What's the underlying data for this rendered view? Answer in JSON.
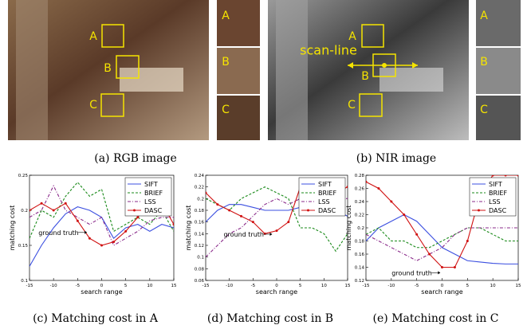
{
  "images": [
    {
      "caption": "(a) RGB image",
      "labels": [
        "A",
        "B",
        "C"
      ]
    },
    {
      "caption": "(b) NIR image",
      "labels": [
        "A",
        "B",
        "C"
      ],
      "annotation": "scan-line"
    }
  ],
  "chart_data": [
    {
      "type": "line",
      "caption": "(c) Matching cost in A",
      "xlabel": "search range",
      "ylabel": "matching cost",
      "annotation": "ground truth",
      "x": [
        -15,
        -12.5,
        -10,
        -7.5,
        -5,
        -2.5,
        0,
        2.5,
        5,
        7.5,
        10,
        12.5,
        15
      ],
      "xlim": [
        -15,
        15
      ],
      "xticks": [
        -15,
        -10,
        -5,
        0,
        5,
        10,
        15
      ],
      "ylim": [
        0.1,
        0.25
      ],
      "yticks": [
        0.1,
        0.15,
        0.2,
        0.25
      ],
      "legend": "upper right",
      "series": [
        {
          "name": "SIFT",
          "color": "#3b4fe0",
          "dash": "solid",
          "values": [
            0.12,
            0.15,
            0.175,
            0.195,
            0.205,
            0.2,
            0.19,
            0.16,
            0.175,
            0.18,
            0.17,
            0.18,
            0.175
          ]
        },
        {
          "name": "BRIEF",
          "color": "#1a8a1a",
          "dash": "dashed",
          "values": [
            0.16,
            0.2,
            0.19,
            0.22,
            0.24,
            0.22,
            0.23,
            0.17,
            0.18,
            0.19,
            0.18,
            0.2,
            0.17
          ]
        },
        {
          "name": "LSS",
          "color": "#8a2a8a",
          "dash": "dashdot",
          "values": [
            0.19,
            0.2,
            0.235,
            0.2,
            0.19,
            0.18,
            0.19,
            0.15,
            0.16,
            0.17,
            0.185,
            0.19,
            0.19
          ]
        },
        {
          "name": "DASC",
          "color": "#d01010",
          "dash": "solid",
          "marker": true,
          "values": [
            0.2,
            0.21,
            0.2,
            0.21,
            0.185,
            0.16,
            0.15,
            0.155,
            0.17,
            0.19,
            0.21,
            0.21,
            0.18
          ]
        }
      ]
    },
    {
      "type": "line",
      "caption": "(d) Matching cost in B",
      "xlabel": "search range",
      "ylabel": "matching cost",
      "annotation": "ground truth",
      "x": [
        -15,
        -12.5,
        -10,
        -7.5,
        -5,
        -2.5,
        0,
        2.5,
        5,
        7.5,
        10,
        12.5,
        15
      ],
      "xlim": [
        -15,
        15
      ],
      "xticks": [
        -15,
        -10,
        -5,
        0,
        5,
        10,
        15
      ],
      "ylim": [
        0.06,
        0.24
      ],
      "yticks": [
        0.06,
        0.08,
        0.1,
        0.12,
        0.14,
        0.16,
        0.18,
        0.2,
        0.22,
        0.24
      ],
      "legend": "upper right",
      "series": [
        {
          "name": "SIFT",
          "color": "#3b4fe0",
          "dash": "solid",
          "values": [
            0.16,
            0.18,
            0.19,
            0.19,
            0.185,
            0.18,
            0.18,
            0.18,
            0.185,
            0.19,
            0.19,
            0.18,
            0.17
          ]
        },
        {
          "name": "BRIEF",
          "color": "#1a8a1a",
          "dash": "dashed",
          "values": [
            0.2,
            0.19,
            0.18,
            0.2,
            0.21,
            0.22,
            0.21,
            0.2,
            0.15,
            0.15,
            0.14,
            0.11,
            0.14
          ]
        },
        {
          "name": "LSS",
          "color": "#8a2a8a",
          "dash": "dashdot",
          "values": [
            0.1,
            0.12,
            0.14,
            0.15,
            0.17,
            0.19,
            0.2,
            0.19,
            0.2,
            0.2,
            0.2,
            0.2,
            0.2
          ]
        },
        {
          "name": "DASC",
          "color": "#d01010",
          "dash": "solid",
          "marker": true,
          "values": [
            0.21,
            0.19,
            0.18,
            0.17,
            0.16,
            0.14,
            0.145,
            0.16,
            0.22,
            0.22,
            0.21,
            0.21,
            0.22
          ]
        }
      ]
    },
    {
      "type": "line",
      "caption": "(e) Matching cost in C",
      "xlabel": "search range",
      "ylabel": "matching cost",
      "annotation": "ground truth",
      "x": [
        -15,
        -12.5,
        -10,
        -7.5,
        -5,
        -2.5,
        0,
        2.5,
        5,
        7.5,
        10,
        12.5,
        15
      ],
      "xlim": [
        -15,
        15
      ],
      "xticks": [
        -15,
        -10,
        -5,
        0,
        5,
        10,
        15
      ],
      "ylim": [
        0.12,
        0.28
      ],
      "yticks": [
        0.12,
        0.14,
        0.16,
        0.18,
        0.2,
        0.22,
        0.24,
        0.26,
        0.28
      ],
      "legend": "upper right",
      "series": [
        {
          "name": "SIFT",
          "color": "#3b4fe0",
          "dash": "solid",
          "values": [
            0.18,
            0.2,
            0.21,
            0.22,
            0.21,
            0.19,
            0.17,
            0.16,
            0.15,
            0.148,
            0.146,
            0.145,
            0.145
          ]
        },
        {
          "name": "BRIEF",
          "color": "#1a8a1a",
          "dash": "dashed",
          "values": [
            0.19,
            0.2,
            0.18,
            0.18,
            0.17,
            0.17,
            0.18,
            0.19,
            0.2,
            0.2,
            0.19,
            0.18,
            0.18
          ]
        },
        {
          "name": "LSS",
          "color": "#8a2a8a",
          "dash": "dashdot",
          "values": [
            0.19,
            0.18,
            0.17,
            0.16,
            0.15,
            0.16,
            0.17,
            0.19,
            0.2,
            0.2,
            0.2,
            0.2,
            0.2
          ]
        },
        {
          "name": "DASC",
          "color": "#d01010",
          "dash": "solid",
          "marker": true,
          "values": [
            0.27,
            0.26,
            0.24,
            0.22,
            0.19,
            0.16,
            0.14,
            0.14,
            0.18,
            0.25,
            0.28,
            0.28,
            0.28
          ]
        }
      ]
    }
  ]
}
